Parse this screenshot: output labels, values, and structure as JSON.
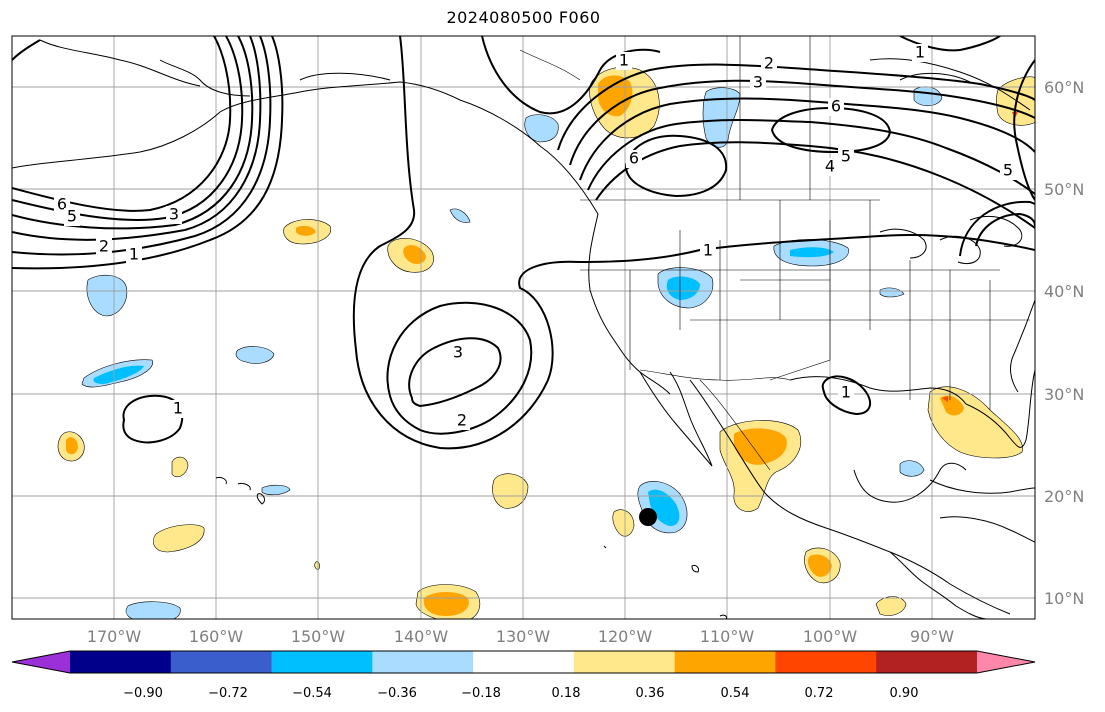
{
  "title": "2024080500 F060",
  "lat_labels": [
    "60°N",
    "50°N",
    "40°N",
    "30°N",
    "20°N",
    "10°N"
  ],
  "lon_labels": [
    "170°W",
    "160°W",
    "150°W",
    "140°W",
    "130°W",
    "120°W",
    "110°W",
    "100°W",
    "90°W"
  ],
  "colorbar": {
    "tick_labels": [
      "−0.90",
      "−0.72",
      "−0.54",
      "−0.36",
      "−0.18",
      "0.18",
      "0.36",
      "0.54",
      "0.72",
      "0.90"
    ],
    "colors": [
      "#9b30d9",
      "#00008b",
      "#3a5fcd",
      "#00bfff",
      "#aadcff",
      "#ffffff",
      "#ffe88c",
      "#ffa500",
      "#ff4500",
      "#b22222",
      "#ff88aa"
    ]
  },
  "contour_labels": [
    "6",
    "5",
    "3",
    "2",
    "1",
    "1",
    "2",
    "3",
    "6",
    "6",
    "5",
    "4",
    "1",
    "3",
    "2",
    "1",
    "1",
    "5",
    "1"
  ],
  "colors": {
    "contour": "#000000",
    "grid": "#a0a0a0",
    "coast": "#000000",
    "light_blue": "#aadcff",
    "blue": "#00bfff",
    "light_orange": "#ffe88c",
    "orange": "#ffa500",
    "red_orange": "#ff4500"
  }
}
